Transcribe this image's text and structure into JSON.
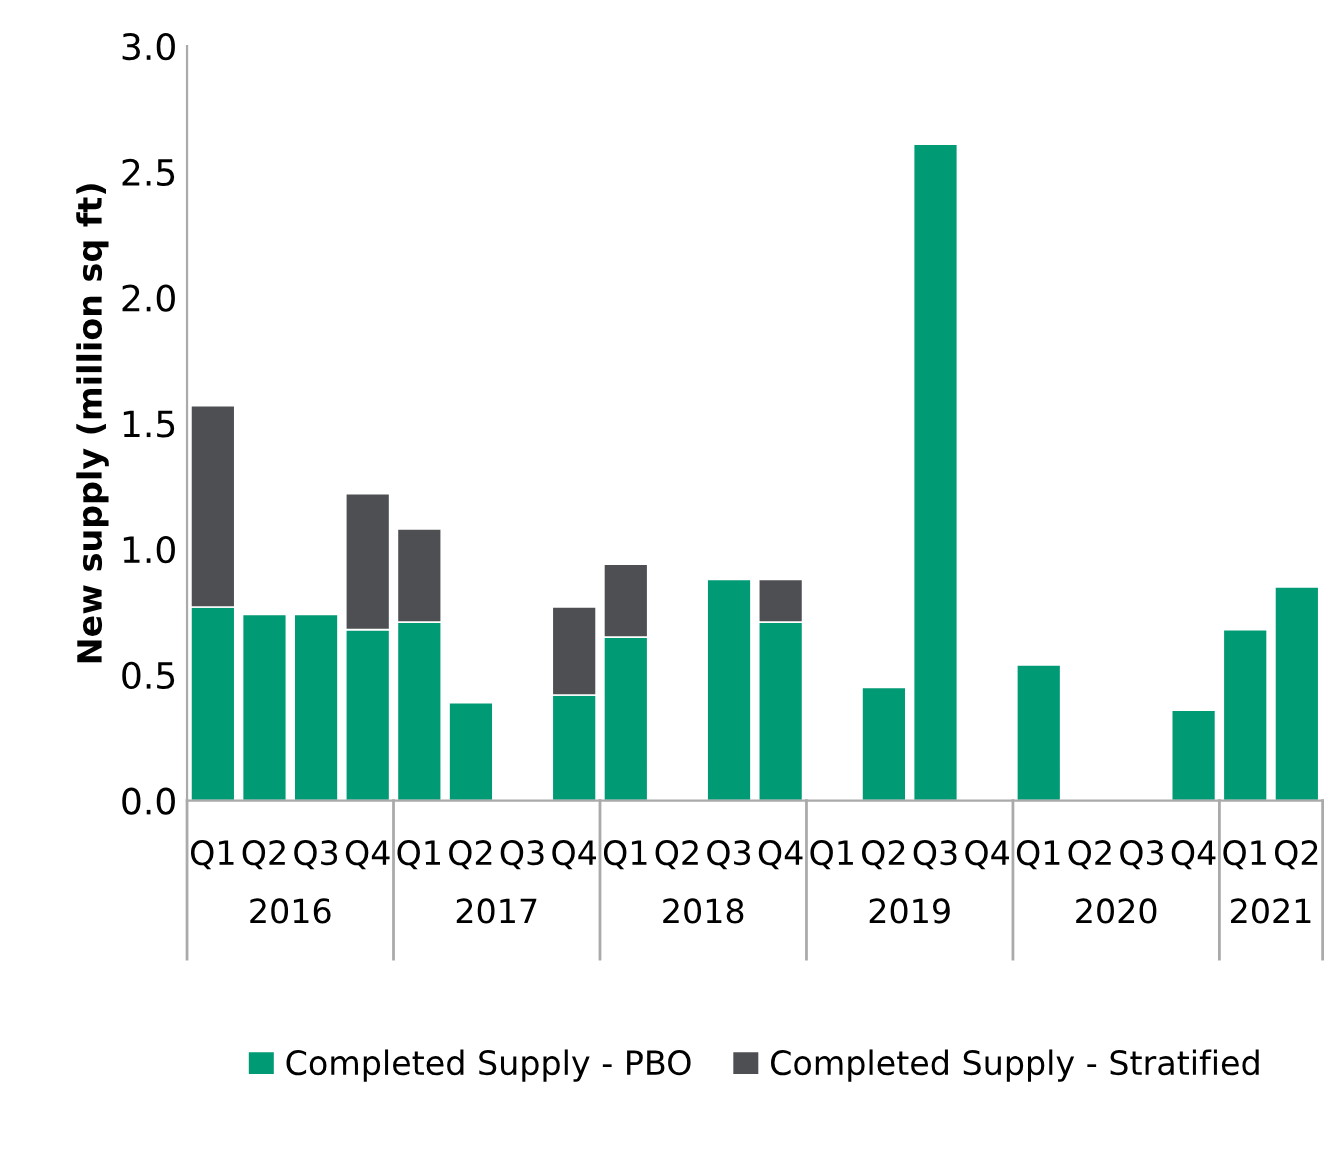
{
  "chart_data": {
    "type": "bar",
    "stacked": true,
    "ylabel": "New supply (million sq ft)",
    "categories": [
      "Q1",
      "Q2",
      "Q3",
      "Q4",
      "Q1",
      "Q2",
      "Q3",
      "Q4",
      "Q1",
      "Q2",
      "Q3",
      "Q4",
      "Q1",
      "Q2",
      "Q3",
      "Q4",
      "Q1",
      "Q2",
      "Q3",
      "Q4",
      "Q1",
      "Q2"
    ],
    "series": [
      {
        "name": "Completed Supply - PBO",
        "color": "#009a74",
        "values": [
          0.77,
          0.74,
          0.74,
          0.68,
          0.71,
          0.39,
          null,
          0.42,
          0.65,
          null,
          0.88,
          0.71,
          null,
          0.45,
          2.61,
          null,
          0.54,
          null,
          null,
          0.36,
          0.68,
          0.85
        ]
      },
      {
        "name": "Completed Supply - Stratified",
        "color": "#4d4f53",
        "values": [
          0.8,
          null,
          null,
          0.54,
          0.37,
          null,
          null,
          0.35,
          0.29,
          null,
          null,
          0.17,
          null,
          null,
          null,
          null,
          null,
          null,
          null,
          null,
          null,
          null
        ]
      }
    ],
    "annotations": [
      "2016",
      "2017",
      "2018",
      "2019",
      "2020",
      "2021"
    ],
    "ylim": [
      0,
      3.0
    ],
    "yticks": [
      {
        "value": 0,
        "label": "0.0"
      },
      {
        "value": 0.5,
        "label": "0.5"
      },
      {
        "value": 1,
        "label": "1.0"
      },
      {
        "value": 1.5,
        "label": "1.5"
      },
      {
        "value": 2,
        "label": "2.0"
      },
      {
        "value": 2.5,
        "label": "2.5"
      },
      {
        "value": 3,
        "label": "3.0"
      }
    ],
    "legend": "bottom",
    "grid": false
  }
}
